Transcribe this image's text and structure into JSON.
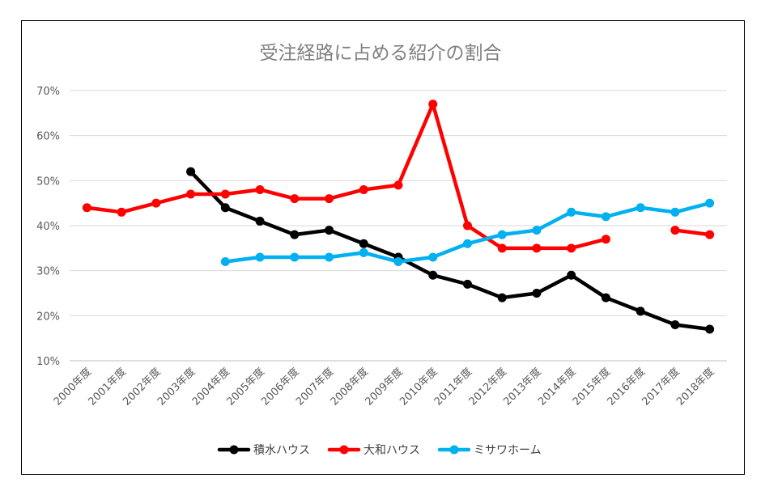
{
  "chart_data": {
    "type": "line",
    "title": "受注経路に占める紹介の割合",
    "xlabel": "",
    "ylabel": "",
    "categories": [
      "2000年度",
      "2001年度",
      "2002年度",
      "2003年度",
      "2004年度",
      "2005年度",
      "2006年度",
      "2007年度",
      "2008年度",
      "2009年度",
      "2010年度",
      "2011年度",
      "2012年度",
      "2013年度",
      "2014年度",
      "2015年度",
      "2016年度",
      "2017年度",
      "2018年度"
    ],
    "y_ticks": [
      "10%",
      "20%",
      "30%",
      "40%",
      "50%",
      "60%",
      "70%"
    ],
    "ylim": [
      10,
      70
    ],
    "grid": true,
    "legend_position": "bottom",
    "series": [
      {
        "name": "積水ハウス",
        "color": "#000000",
        "values": [
          null,
          null,
          null,
          52,
          44,
          41,
          38,
          39,
          36,
          33,
          29,
          27,
          24,
          25,
          29,
          24,
          21,
          18,
          17
        ]
      },
      {
        "name": "大和ハウス",
        "color": "#ff0000",
        "values": [
          44,
          43,
          45,
          47,
          47,
          48,
          46,
          46,
          48,
          49,
          67,
          40,
          35,
          35,
          35,
          37,
          null,
          39,
          38
        ]
      },
      {
        "name": "ミサワホーム",
        "color": "#00b0f0",
        "values": [
          null,
          null,
          null,
          null,
          32,
          33,
          33,
          33,
          34,
          32,
          33,
          36,
          38,
          39,
          43,
          42,
          44,
          43,
          45
        ]
      }
    ]
  }
}
